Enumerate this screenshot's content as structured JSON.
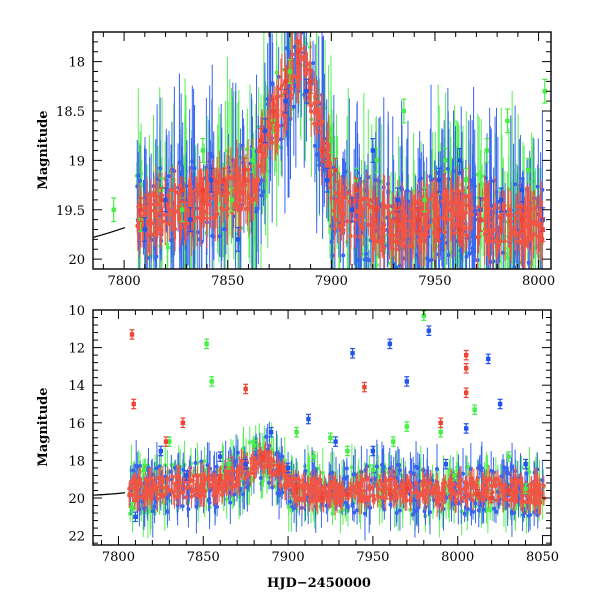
{
  "colors": {
    "green": "#44ee44",
    "blue": "#2255ee",
    "red": "#ee4433",
    "model": "#000000"
  },
  "chart_data": [
    {
      "type": "scatter",
      "title": "",
      "xlabel": "",
      "ylabel": "Magnitude",
      "xlim": [
        7785,
        8006
      ],
      "ylim": [
        20.1,
        17.7
      ],
      "xticks": [
        7800,
        7850,
        7900,
        7950,
        8000
      ],
      "yticks": [
        18,
        18.5,
        19,
        19.5,
        20
      ],
      "y_inverted": true,
      "series": [
        {
          "color": "green",
          "x": [
            7795,
            7808,
            7818,
            7828,
            7838,
            7852,
            7862,
            7872,
            7880,
            7890,
            7900,
            7912,
            7922,
            7935,
            7945,
            7955,
            7965,
            7975,
            7985,
            7995,
            8003
          ],
          "y": [
            19.5,
            19.6,
            19.3,
            19.5,
            18.9,
            19.4,
            19.0,
            18.6,
            18.1,
            18.2,
            18.8,
            19.2,
            19.0,
            18.5,
            19.4,
            19.0,
            19.2,
            18.9,
            18.6,
            19.1,
            18.3
          ]
        },
        {
          "color": "blue",
          "x": [
            7810,
            7820,
            7832,
            7842,
            7855,
            7868,
            7878,
            7888,
            7898,
            7910,
            7920,
            7932,
            7942,
            7952,
            7962,
            7972,
            7982,
            7992,
            8002
          ],
          "y": [
            19.7,
            19.4,
            19.6,
            19.2,
            19.8,
            18.7,
            18.4,
            18.3,
            19.2,
            19.5,
            18.9,
            19.4,
            19.6,
            19.2,
            19.0,
            19.5,
            19.4,
            19.3,
            19.6
          ]
        },
        {
          "color": "red",
          "x": [
            7808,
            7818,
            7828,
            7838,
            7848,
            7858,
            7866,
            7872,
            7878,
            7884,
            7890,
            7896,
            7902,
            7912,
            7922,
            7932,
            7942,
            7952,
            7962,
            7972,
            7982,
            7992,
            8002
          ],
          "y": [
            19.5,
            19.4,
            19.3,
            19.3,
            19.2,
            19.1,
            18.8,
            18.5,
            18.2,
            17.9,
            18.2,
            18.9,
            19.1,
            19.3,
            19.5,
            19.6,
            19.6,
            19.7,
            19.7,
            19.6,
            19.7,
            19.6,
            19.7
          ]
        }
      ]
    },
    {
      "type": "scatter",
      "title": "",
      "xlabel": "HJD−2450000",
      "ylabel": "Magnitude",
      "xlim": [
        7785,
        8055
      ],
      "ylim": [
        22.5,
        10
      ],
      "xticks": [
        7800,
        7850,
        7900,
        7950,
        8000,
        8050
      ],
      "yticks": [
        10,
        12,
        14,
        16,
        18,
        20,
        22
      ],
      "y_inverted": true,
      "series": [
        {
          "color": "green",
          "x": [
            7808,
            7815,
            7830,
            7852,
            7855,
            7865,
            7880,
            7905,
            7915,
            7925,
            7935,
            7950,
            7962,
            7970,
            7980,
            7990,
            7998,
            8010,
            8030,
            8040
          ],
          "y": [
            20.5,
            18.5,
            17.0,
            11.8,
            13.8,
            18.2,
            17.2,
            16.5,
            17.8,
            16.8,
            17.5,
            18.5,
            17.0,
            16.2,
            10.3,
            16.5,
            18.8,
            15.3,
            17.8,
            19.5
          ]
        },
        {
          "color": "blue",
          "x": [
            7810,
            7825,
            7840,
            7860,
            7875,
            7890,
            7900,
            7912,
            7928,
            7938,
            7950,
            7960,
            7970,
            7983,
            7993,
            8005,
            8018,
            8025,
            8040
          ],
          "y": [
            21.0,
            17.5,
            18.8,
            17.8,
            18.2,
            16.5,
            18.4,
            15.8,
            17.0,
            12.3,
            17.5,
            11.8,
            13.8,
            11.1,
            18.2,
            16.3,
            12.6,
            15.0,
            18.2
          ]
        },
        {
          "color": "red",
          "x": [
            7808,
            7809,
            7828,
            7838,
            7860,
            7875,
            7885,
            7895,
            7905,
            7920,
            7935,
            7945,
            7960,
            7970,
            7990,
            8005,
            8005,
            8005,
            8012,
            8020,
            8030
          ],
          "y": [
            11.3,
            15.0,
            17.0,
            16.0,
            19.0,
            14.2,
            17.8,
            18.5,
            19.5,
            20.0,
            19.8,
            14.1,
            19.8,
            19.5,
            16.0,
            12.4,
            13.1,
            14.4,
            19.8,
            20.0,
            19.6
          ]
        }
      ]
    }
  ]
}
